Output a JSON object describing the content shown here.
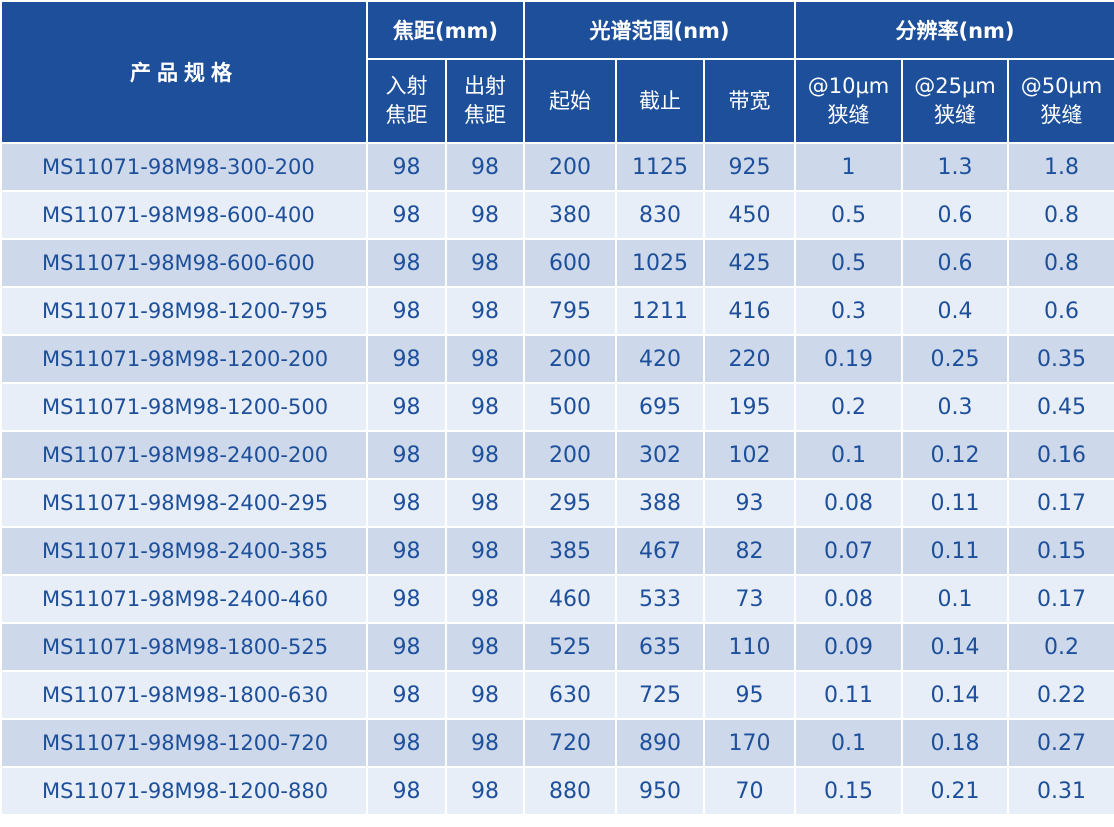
{
  "header": {
    "title": "产品规格",
    "focal_group": "焦距(mm)",
    "spectral_group": "光谱范围(nm)",
    "resolution_group": "分辨率(nm)",
    "focal_in": [
      "入射",
      "焦距"
    ],
    "focal_out": [
      "出射",
      "焦距"
    ],
    "start": "起始",
    "cutoff": "截止",
    "bandwidth": "带宽",
    "res10": [
      "@10μm",
      "狭缝"
    ],
    "res25": [
      "@25μm",
      "狭缝"
    ],
    "res50": [
      "@50μm",
      "狭缝"
    ]
  },
  "rows": [
    {
      "model": "MS11071-98M98-300-200",
      "focal_in": "98",
      "focal_out": "98",
      "start": "200",
      "cutoff": "1125",
      "bandwidth": "925",
      "res10": "1",
      "res25": "1.3",
      "res50": "1.8"
    },
    {
      "model": "MS11071-98M98-600-400",
      "focal_in": "98",
      "focal_out": "98",
      "start": "380",
      "cutoff": "830",
      "bandwidth": "450",
      "res10": "0.5",
      "res25": "0.6",
      "res50": "0.8"
    },
    {
      "model": "MS11071-98M98-600-600",
      "focal_in": "98",
      "focal_out": "98",
      "start": "600",
      "cutoff": "1025",
      "bandwidth": "425",
      "res10": "0.5",
      "res25": "0.6",
      "res50": "0.8"
    },
    {
      "model": "MS11071-98M98-1200-795",
      "focal_in": "98",
      "focal_out": "98",
      "start": "795",
      "cutoff": "1211",
      "bandwidth": "416",
      "res10": "0.3",
      "res25": "0.4",
      "res50": "0.6"
    },
    {
      "model": "MS11071-98M98-1200-200",
      "focal_in": "98",
      "focal_out": "98",
      "start": "200",
      "cutoff": "420",
      "bandwidth": "220",
      "res10": "0.19",
      "res25": "0.25",
      "res50": "0.35"
    },
    {
      "model": "MS11071-98M98-1200-500",
      "focal_in": "98",
      "focal_out": "98",
      "start": "500",
      "cutoff": "695",
      "bandwidth": "195",
      "res10": "0.2",
      "res25": "0.3",
      "res50": "0.45"
    },
    {
      "model": "MS11071-98M98-2400-200",
      "focal_in": "98",
      "focal_out": "98",
      "start": "200",
      "cutoff": "302",
      "bandwidth": "102",
      "res10": "0.1",
      "res25": "0.12",
      "res50": "0.16"
    },
    {
      "model": "MS11071-98M98-2400-295",
      "focal_in": "98",
      "focal_out": "98",
      "start": "295",
      "cutoff": "388",
      "bandwidth": "93",
      "res10": "0.08",
      "res25": "0.11",
      "res50": "0.17"
    },
    {
      "model": "MS11071-98M98-2400-385",
      "focal_in": "98",
      "focal_out": "98",
      "start": "385",
      "cutoff": "467",
      "bandwidth": "82",
      "res10": "0.07",
      "res25": "0.11",
      "res50": "0.15"
    },
    {
      "model": "MS11071-98M98-2400-460",
      "focal_in": "98",
      "focal_out": "98",
      "start": "460",
      "cutoff": "533",
      "bandwidth": "73",
      "res10": "0.08",
      "res25": "0.1",
      "res50": "0.17"
    },
    {
      "model": "MS11071-98M98-1800-525",
      "focal_in": "98",
      "focal_out": "98",
      "start": "525",
      "cutoff": "635",
      "bandwidth": "110",
      "res10": "0.09",
      "res25": "0.14",
      "res50": "0.2"
    },
    {
      "model": "MS11071-98M98-1800-630",
      "focal_in": "98",
      "focal_out": "98",
      "start": "630",
      "cutoff": "725",
      "bandwidth": "95",
      "res10": "0.11",
      "res25": "0.14",
      "res50": "0.22"
    },
    {
      "model": "MS11071-98M98-1200-720",
      "focal_in": "98",
      "focal_out": "98",
      "start": "720",
      "cutoff": "890",
      "bandwidth": "170",
      "res10": "0.1",
      "res25": "0.18",
      "res50": "0.27"
    },
    {
      "model": "MS11071-98M98-1200-880",
      "focal_in": "98",
      "focal_out": "98",
      "start": "880",
      "cutoff": "950",
      "bandwidth": "70",
      "res10": "0.15",
      "res25": "0.21",
      "res50": "0.31"
    }
  ],
  "colors": {
    "header_bg": "#1d4f9a",
    "row_dark": "#cdd8eb",
    "row_light": "#e8eef7",
    "text": "#1d4f9a"
  }
}
